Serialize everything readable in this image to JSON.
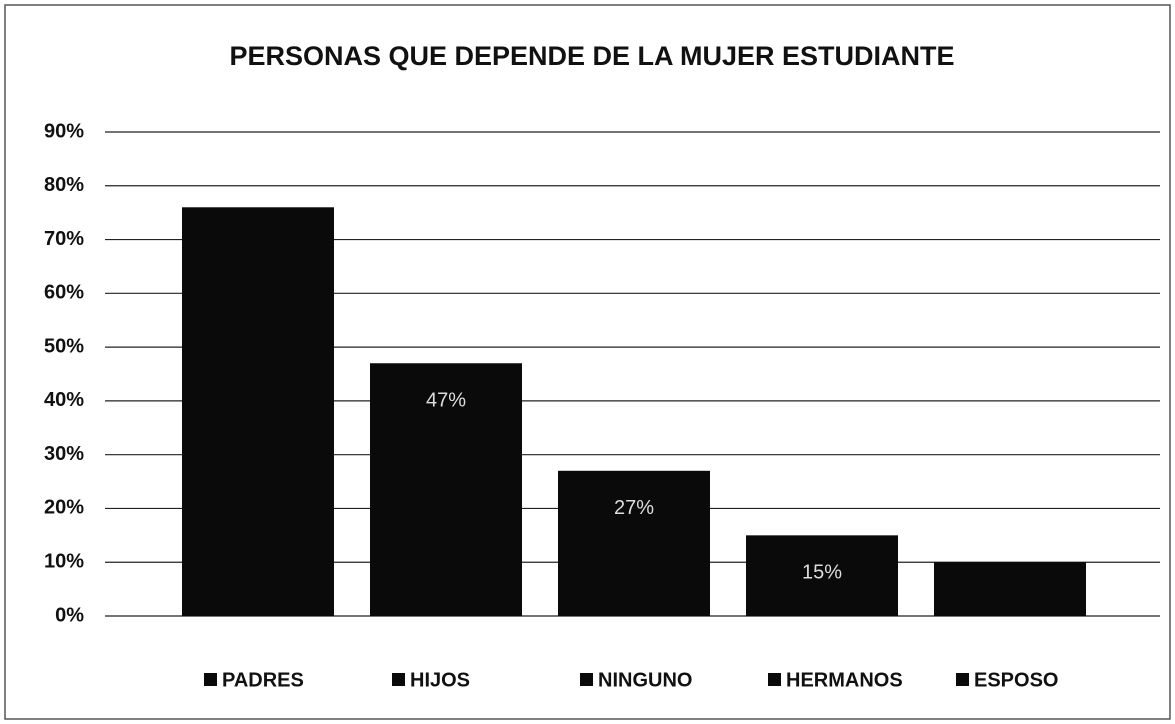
{
  "chart_data": {
    "type": "bar",
    "title": "PERSONAS QUE DEPENDE DE LA MUJER ESTUDIANTE",
    "categories": [
      "PADRES",
      "HIJOS",
      "NINGUNO",
      "HERMANOS",
      "ESPOSO"
    ],
    "values": [
      76,
      47,
      27,
      15,
      10
    ],
    "value_labels": [
      null,
      "47%",
      "27%",
      "15%",
      null
    ],
    "color": "#0a0a0a",
    "ylim": [
      0,
      90
    ],
    "yticks": [
      {
        "value": 0,
        "label": "0%"
      },
      {
        "value": 10,
        "label": "10%"
      },
      {
        "value": 20,
        "label": "20%"
      },
      {
        "value": 30,
        "label": "30%"
      },
      {
        "value": 40,
        "label": "40%"
      },
      {
        "value": 50,
        "label": "50%"
      },
      {
        "value": 60,
        "label": "60%"
      },
      {
        "value": 70,
        "label": "70%"
      },
      {
        "value": 80,
        "label": "80%"
      },
      {
        "value": 90,
        "label": "90%"
      }
    ],
    "grid": true,
    "legend": "bottom"
  }
}
